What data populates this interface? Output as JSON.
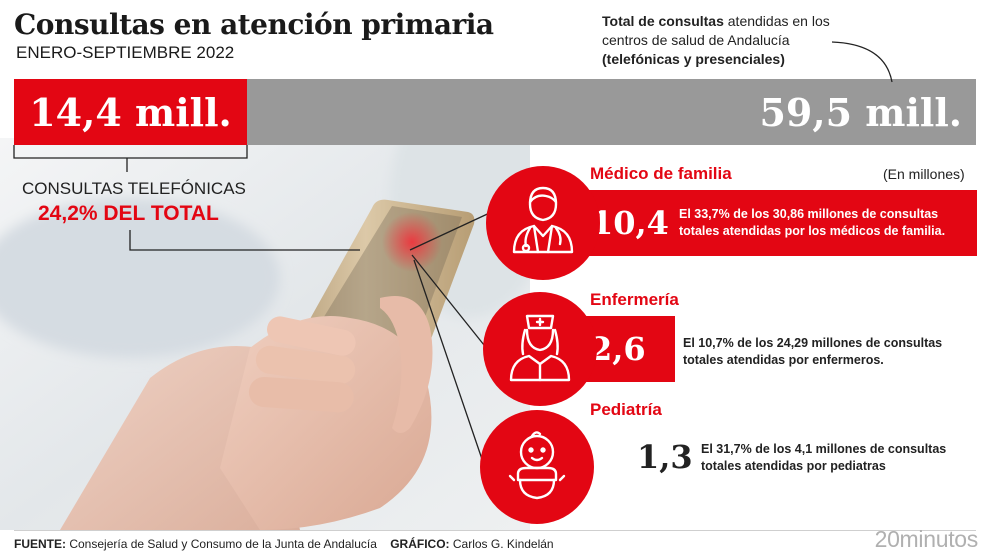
{
  "title": "Consultas en atención primaria",
  "subtitle": "ENERO-SEPTIEMBRE 2022",
  "total_note": {
    "bold_part": "Total de consultas",
    "rest": " atendidas en los centros de salud de Andalucía",
    "bold_end": "(telefónicas y presenciales)"
  },
  "telephone": {
    "value_label": "14,4 mill.",
    "label": "CONSULTAS TELEFÓNICAS",
    "share_label": "24,2% DEL TOTAL"
  },
  "total": {
    "value_label": "59,5 mill."
  },
  "units_note": "(En millones)",
  "categories": [
    {
      "name": "Médico de familia",
      "value_label": "10,4",
      "description": "El 33,7% de los 30,86 millones de consultas totales atendidas por los médicos de familia."
    },
    {
      "name": "Enfermería",
      "value_label": "2,6",
      "description": "El 10,7% de los 24,29 millones de consultas totales atendidas por enfermeros."
    },
    {
      "name": "Pediatría",
      "value_label": "1,3",
      "description": "El 31,7% de los 4,1 millones de consultas totales atendidas por pediatras"
    }
  ],
  "footer": {
    "source_label": "FUENTE:",
    "source": " Consejería de Salud y Consumo de la Junta de Andalucía",
    "graphic_label": "GRÁFICO:",
    "graphic": " Carlos G. Kindelán"
  },
  "logo": "20minutos",
  "colors": {
    "accent": "#e30613",
    "bar_grey": "#999999"
  },
  "chart_data": {
    "type": "bar",
    "title": "Consultas en atención primaria",
    "subtitle": "ENERO-SEPTIEMBRE 2022",
    "units": "(En millones)",
    "total_consultations_millions": 59.5,
    "telephone_consultations_millions": 14.4,
    "telephone_share_percent": 24.2,
    "categories": [
      "Médico de familia",
      "Enfermería",
      "Pediatría"
    ],
    "telephone_values_millions": [
      10.4,
      2.6,
      1.3
    ],
    "share_of_category_percent": [
      33.7,
      10.7,
      31.7
    ],
    "category_totals_millions": [
      30.86,
      24.29,
      4.1
    ]
  }
}
